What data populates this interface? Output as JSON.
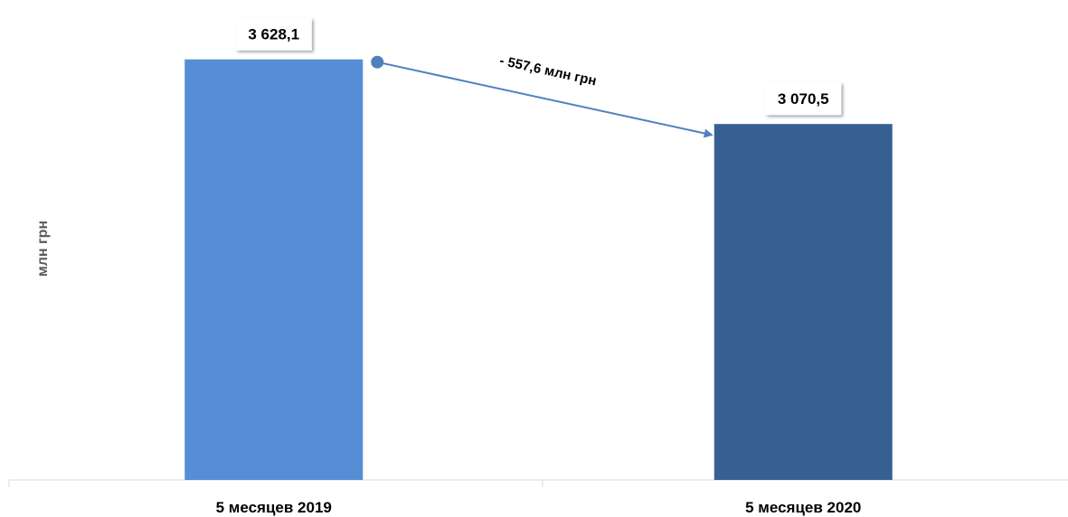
{
  "chart_data": {
    "type": "bar",
    "categories": [
      "5 месяцев 2019",
      "5 месяцев 2020"
    ],
    "values": [
      3628.1,
      3070.5
    ],
    "value_labels": [
      "3 628,1",
      "3 070,5"
    ],
    "ylabel": "млн грн",
    "ylim": [
      0,
      4000
    ],
    "grid": false,
    "legend": "none",
    "colors": [
      "#558ED5",
      "#376092"
    ],
    "annotation": {
      "text": "- 557,6 млн грн",
      "type": "arrow",
      "from_category": 0,
      "to_category": 1,
      "color": "#4F81BD"
    }
  }
}
